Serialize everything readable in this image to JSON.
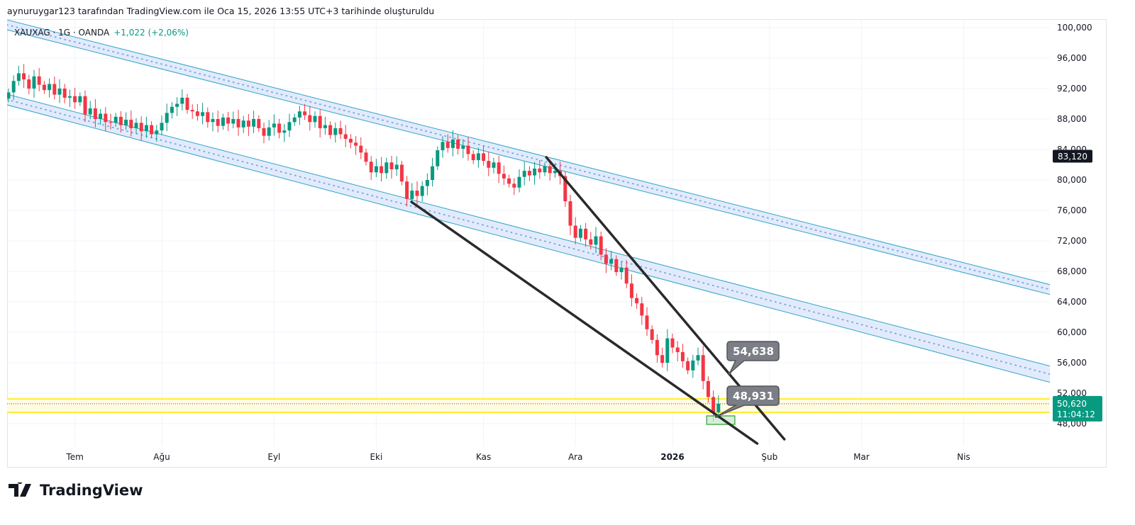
{
  "caption": "aynuruygar123 tarafından TradingView.com ile Oca 15, 2026 13:55 UTC+3 tarihinde oluşturuldu",
  "legend": {
    "symbol": "XAUXAG · 1G · OANDA",
    "change": "+1,022 (+2,06%)"
  },
  "footer": {
    "brand": "TradingView"
  },
  "colors": {
    "up": "#089981",
    "down": "#f23645",
    "channel": "#2fa4c8",
    "channel_fill": "#dbe6fb",
    "trend": "#2a2a2a",
    "yellow": "#ffeb3b",
    "callout": "#7b7e86"
  },
  "chart_data": {
    "type": "candlestick",
    "title": "XAUXAG · 1G · OANDA",
    "unit": "thousand",
    "ylim": [
      44000,
      102000
    ],
    "y_ticks": [
      "100,000",
      "96,000",
      "92,000",
      "88,000",
      "84,000",
      "80,000",
      "76,000",
      "72,000",
      "68,000",
      "64,000",
      "60,000",
      "56,000",
      "52,000",
      "48,000"
    ],
    "x_ticks": [
      {
        "label": "Tem",
        "index": 13
      },
      {
        "label": "Ağu",
        "index": 30
      },
      {
        "label": "Eyl",
        "index": 52
      },
      {
        "label": "Eki",
        "index": 72
      },
      {
        "label": "Kas",
        "index": 93
      },
      {
        "label": "Ara",
        "index": 111
      },
      {
        "label": "2026",
        "index": 130,
        "bold": true
      },
      {
        "label": "Şub",
        "index": 149
      },
      {
        "label": "Mar",
        "index": 167
      },
      {
        "label": "Nis",
        "index": 187
      }
    ],
    "closes": [
      91.5,
      93.0,
      94.0,
      93.2,
      92.0,
      93.6,
      92.5,
      91.8,
      92.6,
      91.2,
      92.0,
      90.8,
      91.0,
      90.2,
      91.0,
      88.6,
      89.4,
      88.0,
      88.7,
      87.6,
      87.5,
      88.3,
      87.2,
      87.9,
      86.8,
      87.5,
      86.4,
      87.2,
      86.0,
      86.5,
      87.5,
      88.8,
      89.6,
      90.0,
      90.8,
      89.2,
      89.0,
      88.4,
      88.9,
      87.6,
      88.0,
      87.1,
      88.2,
      87.4,
      88.0,
      86.9,
      87.8,
      87.0,
      88.0,
      86.8,
      85.8,
      86.9,
      87.4,
      86.2,
      86.5,
      87.6,
      88.2,
      89.0,
      88.5,
      87.6,
      88.4,
      86.8,
      87.2,
      85.9,
      86.8,
      86.0,
      85.4,
      84.9,
      84.5,
      83.6,
      82.4,
      81.0,
      81.8,
      80.9,
      82.3,
      81.4,
      82.0,
      79.8,
      77.5,
      78.6,
      77.9,
      79.2,
      80.0,
      81.8,
      83.9,
      85.0,
      84.2,
      85.3,
      84.1,
      84.5,
      83.4,
      82.6,
      83.5,
      82.5,
      81.6,
      82.3,
      80.8,
      80.2,
      79.5,
      79.0,
      80.4,
      81.2,
      80.6,
      81.5,
      81.0,
      81.8,
      80.9,
      81.2,
      80.5,
      77.2,
      74.0,
      72.4,
      73.6,
      72.2,
      71.5,
      72.6,
      70.2,
      69.0,
      69.6,
      67.9,
      68.5,
      66.4,
      64.5,
      63.8,
      62.2,
      60.4,
      59.0,
      57.0,
      56.0,
      59.2,
      58.0,
      57.4,
      56.2,
      55.0,
      56.3,
      57.0,
      53.6,
      51.5,
      49.5,
      50.62
    ],
    "channels": [
      {
        "name": "upper-channel",
        "top": [
          [
            -0.3,
            101023
          ],
          [
            204.6,
            66140
          ]
        ],
        "bottom": [
          [
            -0.3,
            99720
          ],
          [
            204.6,
            64840
          ]
        ]
      },
      {
        "name": "lower-channel",
        "top": [
          [
            -0.3,
            91256
          ],
          [
            204.6,
            55442
          ]
        ],
        "bottom": [
          [
            -0.3,
            89860
          ],
          [
            204.6,
            53302
          ]
        ]
      }
    ],
    "trendlines": [
      {
        "name": "lower-trendline",
        "from": [
          78.9,
          77116
        ],
        "to": [
          146.6,
          45395
        ]
      },
      {
        "name": "upper-trendline",
        "from": [
          105.3,
          82977
        ],
        "to": [
          151.9,
          45953
        ]
      }
    ],
    "support_zone": {
      "top": 51256,
      "bottom": 49488
    },
    "target_box": {
      "from": [
        136.7,
        49023
      ],
      "to": [
        142.2,
        47907
      ]
    },
    "callouts": [
      {
        "text": "54,638",
        "point": [
          141.2,
          54638
        ]
      },
      {
        "text": "48,931",
        "point": [
          138.6,
          48931
        ]
      }
    ],
    "price_labels": [
      {
        "text": "83,120",
        "value": 83120,
        "kind": "dark"
      },
      {
        "text": "50,620",
        "sub": "11:04:12",
        "value": 50620,
        "kind": "green"
      }
    ]
  }
}
